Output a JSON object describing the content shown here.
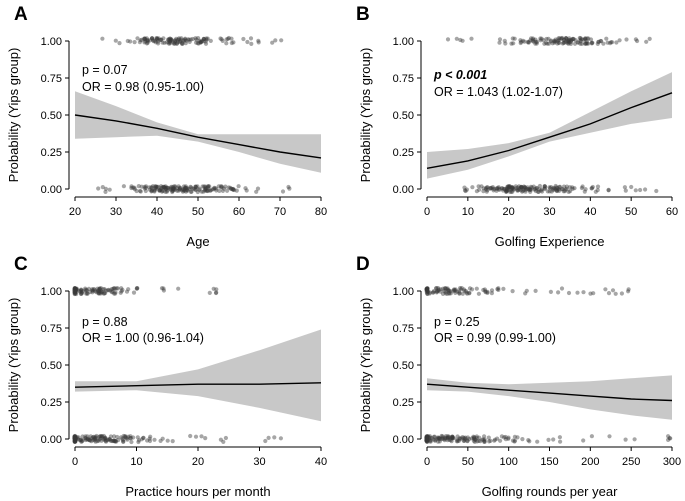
{
  "figure": {
    "ylabel": "Probability (Yips group)"
  },
  "chart_data": [
    {
      "panel": "A",
      "type": "scatter",
      "title": "",
      "xlabel": "Age",
      "ylabel": "Probability (Yips group)",
      "xlim": [
        20,
        80
      ],
      "ylim": [
        0,
        1
      ],
      "xticks": [
        20,
        30,
        40,
        50,
        60,
        70,
        80
      ],
      "yticks": [
        "0.00",
        "0.25",
        "0.50",
        "0.75",
        "1.00"
      ],
      "p_text": "p = 0.07",
      "p_bold": false,
      "or_text": "OR = 0.98 (0.95-1.00)",
      "fit": {
        "x": [
          20,
          30,
          40,
          50,
          60,
          70,
          80
        ],
        "y": [
          0.5,
          0.46,
          0.41,
          0.35,
          0.3,
          0.25,
          0.21
        ]
      },
      "ci_lower": [
        0.34,
        0.35,
        0.36,
        0.32,
        0.25,
        0.17,
        0.11
      ],
      "ci_upper": [
        0.66,
        0.56,
        0.45,
        0.37,
        0.37,
        0.37,
        0.37
      ],
      "points_yips": {
        "range": [
          26,
          72
        ],
        "peak": 45,
        "count": 130
      },
      "points_control": {
        "range": [
          25,
          75
        ],
        "peak": 45,
        "count": 170
      }
    },
    {
      "panel": "B",
      "type": "scatter",
      "title": "",
      "xlabel": "Golfing Experience",
      "ylabel": "Probability (Yips group)",
      "xlim": [
        0,
        60
      ],
      "ylim": [
        0,
        1
      ],
      "xticks": [
        0,
        10,
        20,
        30,
        40,
        50,
        60
      ],
      "yticks": [
        "0.00",
        "0.25",
        "0.50",
        "0.75",
        "1.00"
      ],
      "p_text": "p < 0.001",
      "p_bold": true,
      "or_text": "OR = 1.043 (1.02-1.07)",
      "fit": {
        "x": [
          0,
          10,
          20,
          30,
          40,
          50,
          60
        ],
        "y": [
          0.14,
          0.19,
          0.26,
          0.35,
          0.44,
          0.55,
          0.65
        ]
      },
      "ci_lower": [
        0.07,
        0.13,
        0.22,
        0.32,
        0.38,
        0.44,
        0.48
      ],
      "ci_upper": [
        0.25,
        0.27,
        0.31,
        0.38,
        0.52,
        0.66,
        0.79
      ],
      "points_yips": {
        "range": [
          5,
          56
        ],
        "peak": 32,
        "count": 130
      },
      "points_control": {
        "range": [
          6,
          58
        ],
        "peak": 25,
        "count": 170
      }
    },
    {
      "panel": "C",
      "type": "scatter",
      "title": "",
      "xlabel": "Practice hours per month",
      "ylabel": "Probability (Yips group)",
      "xlim": [
        0,
        40
      ],
      "ylim": [
        0,
        1
      ],
      "xticks": [
        0,
        10,
        20,
        30,
        40
      ],
      "yticks": [
        "0.00",
        "0.25",
        "0.50",
        "0.75",
        "1.00"
      ],
      "p_text": "p = 0.88",
      "p_bold": false,
      "or_text": "OR = 1.00 (0.96-1.04)",
      "fit": {
        "x": [
          0,
          10,
          20,
          30,
          40
        ],
        "y": [
          0.35,
          0.36,
          0.37,
          0.37,
          0.38
        ]
      },
      "ci_lower": [
        0.32,
        0.33,
        0.29,
        0.21,
        0.12
      ],
      "ci_upper": [
        0.39,
        0.39,
        0.47,
        0.6,
        0.74
      ],
      "points_yips": {
        "range": [
          0,
          24
        ],
        "peak": 3,
        "count": 110
      },
      "points_control": {
        "range": [
          0,
          40
        ],
        "peak": 3,
        "count": 150
      }
    },
    {
      "panel": "D",
      "type": "scatter",
      "title": "",
      "xlabel": "Golfing rounds per year",
      "ylabel": "Probability (Yips group)",
      "xlim": [
        0,
        300
      ],
      "ylim": [
        0,
        1
      ],
      "xticks": [
        0,
        50,
        100,
        150,
        200,
        250,
        300
      ],
      "yticks": [
        "0.00",
        "0.25",
        "0.50",
        "0.75",
        "1.00"
      ],
      "p_text": "p = 0.25",
      "p_bold": false,
      "or_text": "OR = 0.99 (0.99-1.00)",
      "fit": {
        "x": [
          0,
          50,
          100,
          150,
          200,
          250,
          300
        ],
        "y": [
          0.37,
          0.35,
          0.33,
          0.31,
          0.29,
          0.27,
          0.26
        ]
      },
      "ci_lower": [
        0.33,
        0.32,
        0.29,
        0.25,
        0.2,
        0.16,
        0.13
      ],
      "ci_upper": [
        0.41,
        0.38,
        0.37,
        0.38,
        0.39,
        0.41,
        0.43
      ],
      "points_yips": {
        "range": [
          0,
          250
        ],
        "peak": 20,
        "count": 110
      },
      "points_control": {
        "range": [
          0,
          300
        ],
        "peak": 30,
        "count": 160
      }
    }
  ]
}
